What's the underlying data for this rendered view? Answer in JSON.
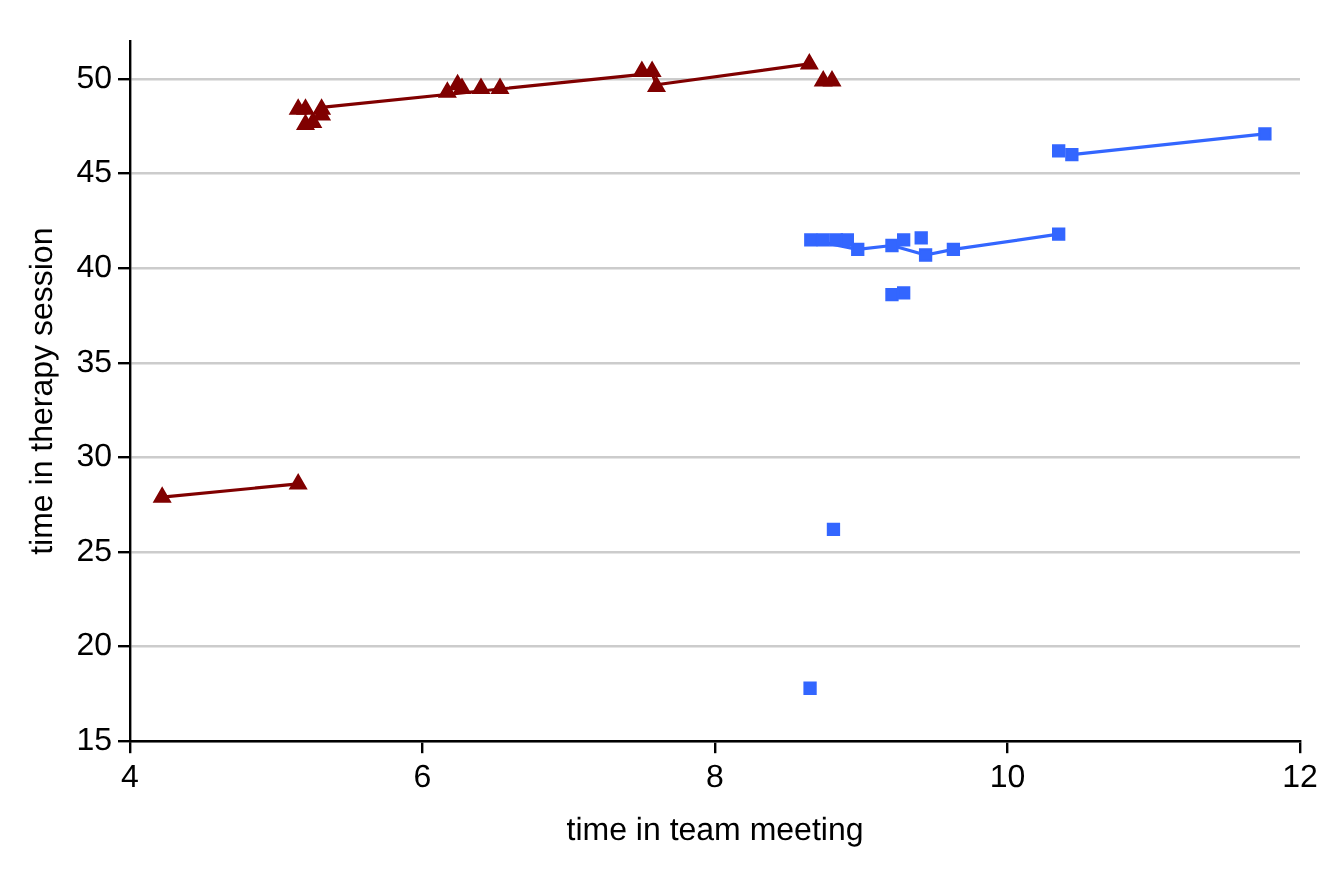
{
  "chart_data": {
    "type": "scatter",
    "xlabel": "time in team meeting",
    "ylabel": "time in therapy session",
    "xlim": [
      4,
      12
    ],
    "xticks": [
      4,
      6,
      8,
      10,
      12
    ],
    "ylim": [
      15,
      52
    ],
    "yticks": [
      15,
      20,
      25,
      30,
      35,
      40,
      45,
      50
    ],
    "grid": "y",
    "legend": false,
    "series": [
      {
        "type": "scatter",
        "color": "#800000",
        "marker": "triangle",
        "x": [
          4.22,
          5.15,
          5.15,
          5.2,
          5.2,
          5.25,
          5.31,
          5.31,
          6.17,
          6.24,
          6.27,
          6.4,
          6.53,
          7.5,
          7.57,
          7.6,
          8.645,
          8.74,
          8.8
        ],
        "values": [
          27.9,
          28.6,
          48.4,
          48.4,
          47.6,
          47.7,
          48.4,
          48.1,
          49.3,
          49.7,
          49.5,
          49.5,
          49.5,
          50.4,
          50.4,
          49.6,
          50.8,
          49.9,
          49.9
        ]
      },
      {
        "type": "scatter",
        "color": "#3366ff",
        "marker": "square",
        "x": [
          8.655,
          8.74,
          8.83,
          8.905,
          8.976,
          9.21,
          9.29,
          9.41,
          9.44,
          9.63,
          10.35,
          10.35,
          10.44,
          11.76,
          9.21,
          9.29,
          8.81,
          8.65
        ],
        "values": [
          41.5,
          41.5,
          41.5,
          41.5,
          41.0,
          41.2,
          41.5,
          41.6,
          40.7,
          41.0,
          41.8,
          46.2,
          46.0,
          47.1,
          38.6,
          38.7,
          26.2,
          17.8
        ]
      },
      {
        "type": "line",
        "color": "#800000",
        "marker": "none",
        "x": [
          4.22,
          5.15
        ],
        "values": [
          27.9,
          28.6
        ]
      },
      {
        "type": "line",
        "color": "#800000",
        "marker": "none",
        "x": [
          5.31,
          7.57,
          7.6,
          8.645
        ],
        "values": [
          48.5,
          50.3,
          49.7,
          50.8
        ]
      },
      {
        "type": "line",
        "color": "#3366ff",
        "marker": "none",
        "x": [
          8.655,
          8.976,
          9.21,
          9.44,
          9.63,
          10.35
        ],
        "values": [
          41.5,
          41.0,
          41.2,
          40.7,
          41.0,
          41.8
        ]
      },
      {
        "type": "line",
        "color": "#3366ff",
        "marker": "none",
        "x": [
          10.44,
          11.76
        ],
        "values": [
          46.0,
          47.1
        ]
      }
    ]
  }
}
